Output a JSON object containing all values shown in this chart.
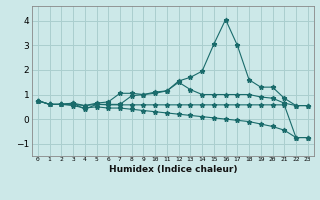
{
  "title": "",
  "xlabel": "Humidex (Indice chaleur)",
  "ylabel": "",
  "xlim": [
    -0.5,
    23.5
  ],
  "ylim": [
    -1.5,
    4.6
  ],
  "xticks": [
    0,
    1,
    2,
    3,
    4,
    5,
    6,
    7,
    8,
    9,
    10,
    11,
    12,
    13,
    14,
    15,
    16,
    17,
    18,
    19,
    20,
    21,
    22,
    23
  ],
  "yticks": [
    -1,
    0,
    1,
    2,
    3,
    4
  ],
  "background_color": "#cce8e8",
  "grid_color": "#aacece",
  "line_color": "#1a6b6b",
  "series": [
    [
      0.75,
      0.6,
      0.6,
      0.65,
      0.55,
      0.65,
      0.7,
      1.05,
      1.05,
      1.0,
      1.05,
      1.15,
      1.55,
      1.7,
      1.95,
      3.05,
      4.05,
      3.0,
      1.6,
      1.3,
      1.3,
      0.85,
      0.55,
      0.55
    ],
    [
      0.75,
      0.6,
      0.6,
      0.65,
      0.4,
      0.6,
      0.6,
      0.6,
      0.95,
      1.0,
      1.1,
      1.15,
      1.5,
      1.2,
      1.0,
      1.0,
      1.0,
      1.0,
      1.0,
      0.9,
      0.85,
      0.65,
      0.55,
      0.55
    ],
    [
      0.75,
      0.6,
      0.6,
      0.6,
      0.55,
      0.6,
      0.58,
      0.58,
      0.58,
      0.58,
      0.58,
      0.58,
      0.58,
      0.58,
      0.58,
      0.58,
      0.58,
      0.58,
      0.58,
      0.58,
      0.58,
      0.58,
      -0.75,
      -0.75
    ],
    [
      0.75,
      0.6,
      0.6,
      0.55,
      0.45,
      0.5,
      0.45,
      0.45,
      0.4,
      0.35,
      0.3,
      0.25,
      0.2,
      0.15,
      0.1,
      0.05,
      0.0,
      -0.05,
      -0.1,
      -0.2,
      -0.3,
      -0.45,
      -0.75,
      -0.75
    ]
  ]
}
